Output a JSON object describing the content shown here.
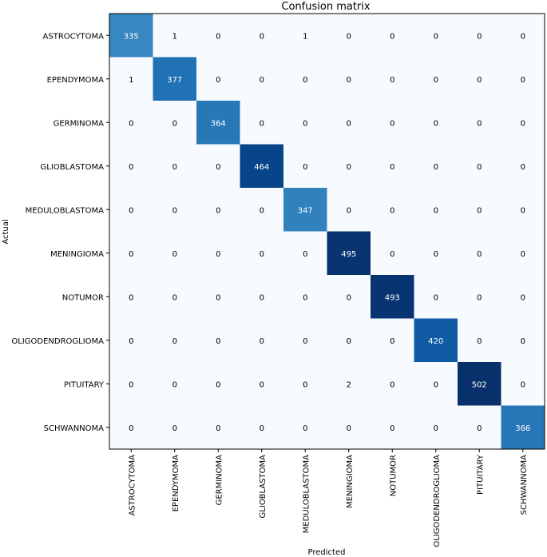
{
  "chart_data": {
    "type": "heatmap",
    "title": "Confusion matrix",
    "xlabel": "Predicted",
    "ylabel": "Actual",
    "row_labels": [
      "ASTROCYTOMA",
      "EPENDYMOMA",
      "GERMINOMA",
      "GLIOBLASTOMA",
      "MEDULOBLASTOMA",
      "MENINGIOMA",
      "NOTUMOR",
      "OLIGODENDROGLIOMA",
      "PITUITARY",
      "SCHWANNOMA"
    ],
    "col_labels": [
      "ASTROCYTOMA",
      "EPENDYMOMA",
      "GERMINOMA",
      "GLIOBLASTOMA",
      "MEDULOBLASTOMA",
      "MENINGIOMA",
      "NOTUMOR",
      "OLIGODENDROGLIOMA",
      "PITUITARY",
      "SCHWANNOMA"
    ],
    "values": [
      [
        335,
        1,
        0,
        0,
        1,
        0,
        0,
        0,
        0,
        0
      ],
      [
        1,
        377,
        0,
        0,
        0,
        0,
        0,
        0,
        0,
        0
      ],
      [
        0,
        0,
        364,
        0,
        0,
        0,
        0,
        0,
        0,
        0
      ],
      [
        0,
        0,
        0,
        464,
        0,
        0,
        0,
        0,
        0,
        0
      ],
      [
        0,
        0,
        0,
        0,
        347,
        0,
        0,
        0,
        0,
        0
      ],
      [
        0,
        0,
        0,
        0,
        0,
        495,
        0,
        0,
        0,
        0
      ],
      [
        0,
        0,
        0,
        0,
        0,
        0,
        493,
        0,
        0,
        0
      ],
      [
        0,
        0,
        0,
        0,
        0,
        0,
        0,
        420,
        0,
        0
      ],
      [
        0,
        0,
        0,
        0,
        0,
        2,
        0,
        0,
        502,
        0
      ],
      [
        0,
        0,
        0,
        0,
        0,
        0,
        0,
        0,
        0,
        366
      ]
    ],
    "colormap": "Blues",
    "value_range": [
      0,
      502
    ]
  }
}
